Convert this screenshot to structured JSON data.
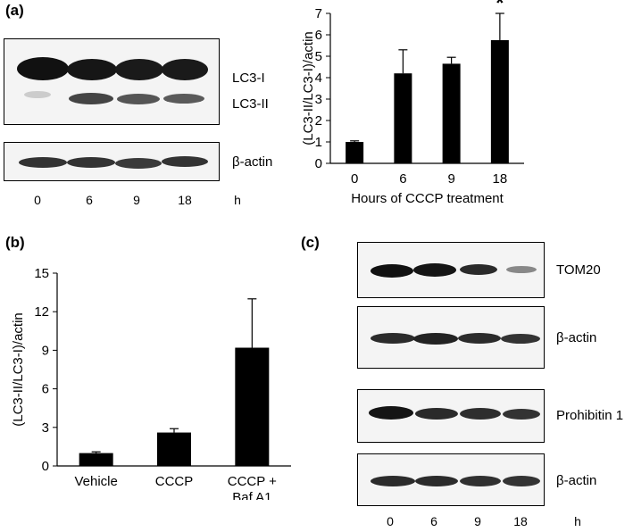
{
  "panels": {
    "a": {
      "label": "(a)",
      "blot": {
        "band_labels": [
          "LC3-I",
          "LC3-II"
        ],
        "loading_label": "β-actin",
        "lanes": [
          "0",
          "6",
          "9",
          "18"
        ],
        "unit": "h"
      }
    },
    "b": {
      "label": "(b)"
    },
    "c": {
      "label": "(c)",
      "blot": {
        "labels": [
          "TOM20",
          "β-actin",
          "Prohibitin 1",
          "β-actin"
        ],
        "lanes": [
          "0",
          "6",
          "9",
          "18"
        ],
        "unit": "h"
      }
    }
  },
  "chart_data": [
    {
      "id": "a",
      "type": "bar",
      "categories": [
        "0",
        "6",
        "9",
        "18"
      ],
      "values": [
        1.0,
        4.2,
        4.65,
        5.75
      ],
      "errors": [
        0.05,
        1.1,
        0.3,
        1.25
      ],
      "significance": [
        "",
        "",
        "",
        "*"
      ],
      "xlabel": "Hours of CCCP treatment",
      "ylabel": "(LC3-II/LC3-I)/actin",
      "ylim": [
        0,
        7
      ],
      "yticks": [
        "0",
        "1",
        "2",
        "3",
        "4",
        "5",
        "6",
        "7"
      ],
      "bar_color": "#000000"
    },
    {
      "id": "b",
      "type": "bar",
      "categories": [
        "Vehicle",
        "CCCP",
        "CCCP +\nBaf A1"
      ],
      "values": [
        1.0,
        2.6,
        9.2
      ],
      "errors": [
        0.1,
        0.3,
        3.8
      ],
      "xlabel": "",
      "ylabel": "(LC3-II/LC3-I)/actin",
      "ylim": [
        0,
        15
      ],
      "yticks": [
        "0",
        "3",
        "6",
        "9",
        "12",
        "15"
      ],
      "bar_color": "#000000"
    }
  ]
}
